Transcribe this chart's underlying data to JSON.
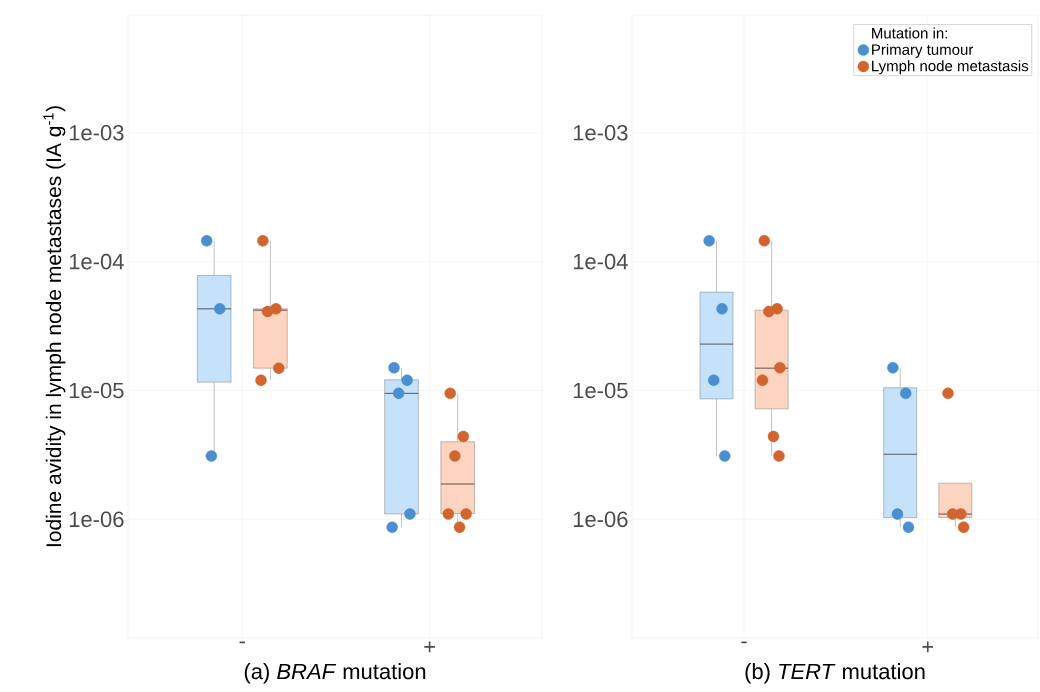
{
  "chart_data": [
    {
      "type": "box",
      "xlabel": "(a) *BRAF* mutation",
      "ylabel": "Iodine avidity in lymph node metastases (IA g$^{-1}$)",
      "categories": [
        "-",
        "+"
      ],
      "log": true,
      "grid": true,
      "legend": false,
      "marker": "circle",
      "ylim": [
        1.2e-07,
        0.0082
      ],
      "yticks": [
        {
          "value": 1e-06,
          "label": "1e-06"
        },
        {
          "value": 1e-05,
          "label": "1e-05"
        },
        {
          "value": 0.0001,
          "label": "1e-04"
        },
        {
          "value": 0.001,
          "label": "1e-03"
        }
      ],
      "series": [
        {
          "color": "#c6e2fa",
          "boxes": [
            {
              "low": 3.1e-06,
              "q1": 1.16e-05,
              "median": 4.3e-05,
              "q3": 7.8e-05,
              "high": 0.000145
            },
            {
              "low": 8.7e-07,
              "q1": 1.1e-06,
              "median": 9.5e-06,
              "q3": 1.21e-05,
              "high": 1.49e-05
            }
          ]
        },
        {
          "color": "#fdd4bf",
          "boxes": [
            {
              "low": 1.2e-05,
              "q1": 1.49e-05,
              "median": 4.2e-05,
              "q3": 4.3e-05,
              "high": 0.000145
            },
            {
              "low": 8.7e-07,
              "q1": 1.11e-06,
              "median": 1.88e-06,
              "q3": 4e-06,
              "high": 9.5e-06
            }
          ]
        },
        {
          "type": "scatter",
          "color": "#4a8fd0",
          "x": [
            "-",
            "-",
            "-",
            "+",
            "+",
            "+",
            "+",
            "+"
          ],
          "values": [
            0.000145,
            4.3e-05,
            3.1e-06,
            1.5e-05,
            1.2e-05,
            9.5e-06,
            1.1e-06,
            8.7e-07
          ]
        },
        {
          "type": "scatter",
          "color": "#d2642f",
          "x": [
            "-",
            "-",
            "-",
            "-",
            "-",
            "+",
            "+",
            "+",
            "+",
            "+",
            "+"
          ],
          "values": [
            0.000145,
            4.3e-05,
            4.1e-05,
            1.49e-05,
            1.2e-05,
            9.5e-06,
            4.4e-06,
            3.1e-06,
            1.1e-06,
            1.1e-06,
            8.7e-07
          ]
        }
      ]
    },
    {
      "type": "box",
      "xlabel": "(b) *TERT* mutation",
      "categories": [
        "-",
        "+"
      ],
      "log": true,
      "grid": true,
      "legend": "top right",
      "legend_title": "Mutation in:",
      "marker": "circle",
      "ylim": [
        1.2e-07,
        0.0082
      ],
      "yticks": [
        {
          "value": 1e-06,
          "label": "1e-06"
        },
        {
          "value": 1e-05,
          "label": "1e-05"
        },
        {
          "value": 0.0001,
          "label": "1e-04"
        },
        {
          "value": 0.001,
          "label": "1e-03"
        }
      ],
      "series": [
        {
          "color": "#c6e2fa",
          "boxes": [
            {
              "low": 3.1e-06,
              "q1": 8.6e-06,
              "median": 2.29e-05,
              "q3": 5.8e-05,
              "high": 0.000145
            },
            {
              "low": 8.7e-07,
              "q1": 1.03e-06,
              "median": 3.2e-06,
              "q3": 1.05e-05,
              "high": 1.5e-05
            }
          ]
        },
        {
          "color": "#fdd4bf",
          "boxes": [
            {
              "low": 3.1e-06,
              "q1": 7.2e-06,
              "median": 1.49e-05,
              "q3": 4.2e-05,
              "high": 0.000145
            },
            {
              "low": 8.7e-07,
              "q1": 1.03e-06,
              "median": 1.1e-06,
              "q3": 1.91e-06,
              "high": 1.91e-06
            }
          ]
        },
        {
          "type": "scatter",
          "name": "Primary tumour",
          "color": "#4a8fd0",
          "x": [
            "-",
            "-",
            "-",
            "-",
            "+",
            "+",
            "+",
            "+"
          ],
          "values": [
            0.000145,
            4.3e-05,
            1.2e-05,
            3.1e-06,
            1.5e-05,
            9.5e-06,
            1.1e-06,
            8.7e-07
          ]
        },
        {
          "type": "scatter",
          "name": "Lymph node metastasis",
          "color": "#d2642f",
          "x": [
            "-",
            "-",
            "-",
            "-",
            "-",
            "-",
            "-",
            "+",
            "+",
            "+",
            "+"
          ],
          "values": [
            0.000145,
            4.3e-05,
            4.1e-05,
            1.5e-05,
            1.2e-05,
            4.4e-06,
            3.1e-06,
            9.5e-06,
            1.1e-06,
            1.1e-06,
            8.7e-07
          ]
        }
      ]
    }
  ]
}
